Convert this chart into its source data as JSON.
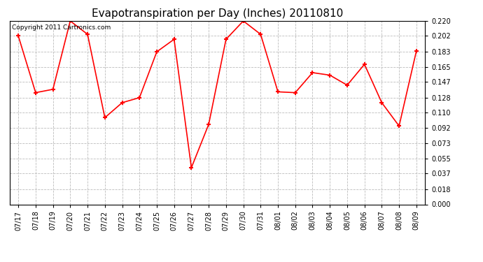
{
  "title": "Evapotranspiration per Day (Inches) 20110810",
  "copyright_text": "Copyright 2011 Cartronics.com",
  "dates": [
    "07/17",
    "07/18",
    "07/19",
    "07/20",
    "07/21",
    "07/22",
    "07/23",
    "07/24",
    "07/25",
    "07/26",
    "07/27",
    "07/28",
    "07/29",
    "07/30",
    "07/31",
    "08/01",
    "08/02",
    "08/03",
    "08/04",
    "08/05",
    "08/06",
    "08/07",
    "08/08",
    "08/09"
  ],
  "values": [
    0.202,
    0.134,
    0.138,
    0.22,
    0.204,
    0.104,
    0.122,
    0.128,
    0.183,
    0.198,
    0.044,
    0.096,
    0.198,
    0.22,
    0.204,
    0.135,
    0.134,
    0.158,
    0.155,
    0.143,
    0.168,
    0.122,
    0.094,
    0.184
  ],
  "line_color": "red",
  "marker": "+",
  "marker_size": 5,
  "marker_lw": 1.5,
  "ylim": [
    0.0,
    0.22
  ],
  "yticks": [
    0.0,
    0.018,
    0.037,
    0.055,
    0.073,
    0.092,
    0.11,
    0.128,
    0.147,
    0.165,
    0.183,
    0.202,
    0.22
  ],
  "background_color": "#ffffff",
  "grid_color": "#bbbbbb",
  "title_fontsize": 11,
  "copyright_fontsize": 6.5,
  "tick_fontsize": 7,
  "line_width": 1.2
}
